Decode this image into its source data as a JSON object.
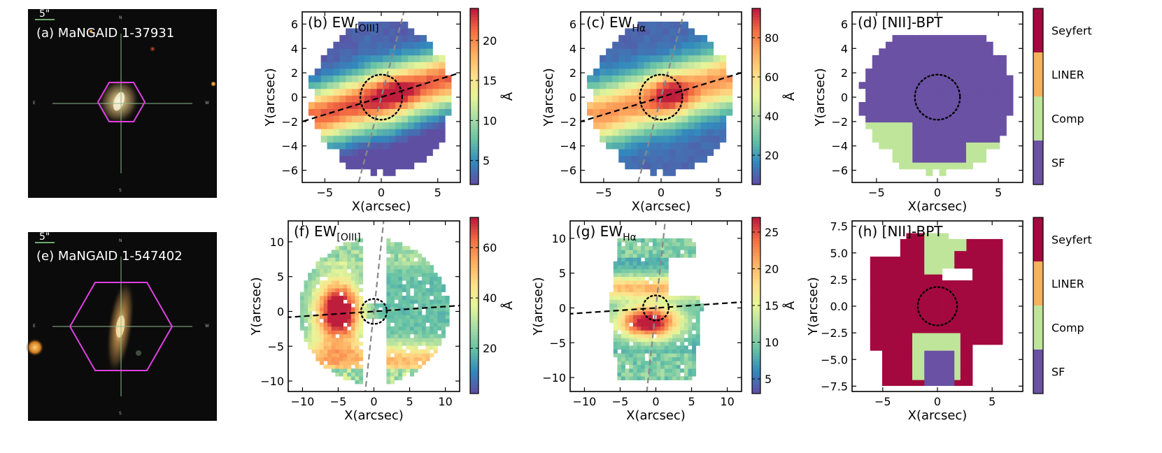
{
  "figure": {
    "rows": [
      "37931",
      "547402"
    ]
  },
  "colors": {
    "seyfert": "#a3093e",
    "liner": "#f7b15c",
    "comp": "#bfe59b",
    "sf": "#6a51a3",
    "major_axis": "#000000",
    "minor_axis": "#888888",
    "hexagon": "#e040e0",
    "sky": "#0b0b0b"
  },
  "images": [
    {
      "label": "(a) MaNGAID 1-37931",
      "scale_text": "5\"",
      "compass": {
        "n": "N",
        "e": "E",
        "w": "W",
        "s": "S"
      }
    },
    {
      "label": "(e) MaNGAID 1-547402",
      "scale_text": "5\"",
      "compass": {
        "n": "N",
        "e": "E",
        "w": "W",
        "s": "S"
      }
    }
  ],
  "chart_data": [
    {
      "id": "b",
      "type": "heatmap",
      "title": "(b) EW",
      "title_sub": "[OIII]",
      "xlabel": "X(arcsec)",
      "ylabel": "Y(arcsec)",
      "xlim": [
        -7,
        7
      ],
      "ylim": [
        -7,
        7
      ],
      "xticks": [
        -5,
        0,
        5
      ],
      "yticks": [
        -6,
        -4,
        -2,
        0,
        2,
        4,
        6
      ],
      "colorbar": {
        "label": "Å",
        "range": [
          2,
          24
        ],
        "ticks": [
          5,
          10,
          15,
          20
        ]
      },
      "map": {
        "radius": 6.3,
        "values_center": 20,
        "peak": 23
      },
      "major_axis_pa_deg": 16,
      "aperture_radius": 1.85,
      "minor_axis_angle_deg": 74
    },
    {
      "id": "c",
      "type": "heatmap",
      "title": "(c) EW",
      "title_sub": "Hα",
      "xlabel": "X(arcsec)",
      "ylabel": "Y(arcsec)",
      "xlim": [
        -7,
        7
      ],
      "ylim": [
        -7,
        7
      ],
      "xticks": [
        -5,
        0,
        5
      ],
      "yticks": [
        -6,
        -4,
        -2,
        0,
        2,
        4,
        6
      ],
      "colorbar": {
        "label": "Å",
        "range": [
          5,
          95
        ],
        "ticks": [
          20,
          40,
          60,
          80
        ]
      },
      "map": {
        "radius": 6.3,
        "values_center": 85,
        "peak": 92
      },
      "major_axis_pa_deg": 16,
      "aperture_radius": 1.85,
      "minor_axis_angle_deg": 74
    },
    {
      "id": "d",
      "type": "heatmap",
      "title": "(d) [NII]-BPT",
      "xlabel": "X(arcsec)",
      "ylabel": "Y(arcsec)",
      "xlim": [
        -7,
        7
      ],
      "ylim": [
        -7,
        7
      ],
      "xticks": [
        -5,
        0,
        5
      ],
      "yticks": [
        -6,
        -4,
        -2,
        0,
        2,
        4,
        6
      ],
      "classes": [
        "Seyfert",
        "LINER",
        "Comp",
        "SF"
      ],
      "dominant_class": "SF",
      "aperture_radius": 1.85
    },
    {
      "id": "f",
      "type": "heatmap",
      "title": "(f) EW",
      "title_sub": "[OIII]",
      "xlabel": "X(arcsec)",
      "ylabel": "Y(arcsec)",
      "xlim": [
        -12,
        12
      ],
      "ylim": [
        -11.5,
        13
      ],
      "xticks": [
        -10,
        -5,
        0,
        5,
        10
      ],
      "yticks": [
        -10,
        -5,
        0,
        5,
        10
      ],
      "colorbar": {
        "label": "Å",
        "range": [
          2,
          72
        ],
        "ticks": [
          20,
          40,
          60
        ]
      },
      "map": {
        "radius": 11,
        "peak": 70
      },
      "major_axis_pa_deg": 6,
      "aperture_radius": 1.8,
      "minor_axis_angle_deg": 86
    },
    {
      "id": "g",
      "type": "heatmap",
      "title": "(g) EW",
      "title_sub": "Hα",
      "xlabel": "X(arcsec)",
      "ylabel": "Y(arcsec)",
      "xlim": [
        -12,
        12
      ],
      "ylim": [
        -12,
        12.5
      ],
      "xticks": [
        -10,
        -5,
        0,
        5,
        10
      ],
      "yticks": [
        -10,
        -5,
        0,
        5,
        10
      ],
      "colorbar": {
        "label": "Å",
        "range": [
          3,
          27
        ],
        "ticks": [
          5,
          10,
          15,
          20,
          25
        ]
      },
      "map": {
        "radius": 10,
        "peak": 25
      },
      "major_axis_pa_deg": 6,
      "aperture_radius": 1.8,
      "minor_axis_angle_deg": 86
    },
    {
      "id": "h",
      "type": "heatmap",
      "title": "(h) [NII]-BPT",
      "xlabel": "X(arcsec)",
      "ylabel": "Y(arcsec)",
      "xlim": [
        -7.8,
        7.8
      ],
      "ylim": [
        -8,
        8
      ],
      "xticks": [
        -5,
        0,
        5
      ],
      "yticks": [
        -7.5,
        -5.0,
        -2.5,
        0.0,
        2.5,
        5.0,
        7.5
      ],
      "ytick_labels": [
        "−7.5",
        "−5.0",
        "−2.5",
        "0.0",
        "2.5",
        "5.0",
        "7.5"
      ],
      "classes": [
        "Seyfert",
        "LINER",
        "Comp",
        "SF"
      ],
      "dominant_class": "Seyfert",
      "aperture_radius": 1.8
    }
  ]
}
